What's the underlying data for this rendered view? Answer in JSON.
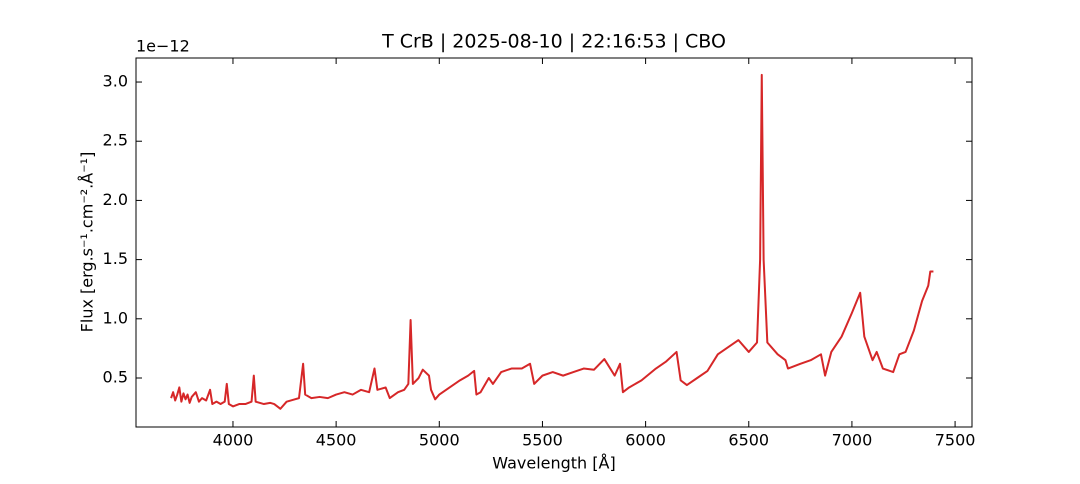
{
  "chart_data": {
    "type": "line",
    "title": "T CrB | 2025-08-10 | 22:16:53 | CBO",
    "x_label": "Wavelength [Å]",
    "y_label": "Flux [erg.s⁻¹.cm⁻².Å⁻¹]",
    "offset_label": "1e−12",
    "xlim": [
      3530,
      7582
    ],
    "ylim": [
      0.086,
      3.203
    ],
    "xticks": [
      4000,
      4500,
      5000,
      5500,
      6000,
      6500,
      7000,
      7500
    ],
    "yticks": [
      0.5,
      {
        "value": 1,
        "label": "1.0"
      },
      1.5,
      {
        "value": 2,
        "label": "2.0"
      },
      2.5,
      {
        "value": 3,
        "label": "3.0"
      }
    ],
    "series": [
      {
        "color": "#d62728",
        "x": [
          3700,
          3710,
          3720,
          3730,
          3740,
          3750,
          3760,
          3770,
          3780,
          3790,
          3800,
          3820,
          3835,
          3850,
          3870,
          3889,
          3900,
          3920,
          3940,
          3960,
          3970,
          3980,
          4000,
          4030,
          4060,
          4090,
          4101,
          4110,
          4150,
          4180,
          4200,
          4230,
          4260,
          4300,
          4320,
          4340,
          4350,
          4380,
          4420,
          4460,
          4500,
          4540,
          4580,
          4620,
          4660,
          4686,
          4700,
          4740,
          4760,
          4800,
          4830,
          4850,
          4861,
          4872,
          4900,
          4920,
          4950,
          4960,
          4980,
          5000,
          5050,
          5100,
          5140,
          5169,
          5180,
          5200,
          5240,
          5260,
          5300,
          5350,
          5400,
          5440,
          5460,
          5500,
          5550,
          5600,
          5650,
          5700,
          5750,
          5800,
          5850,
          5876,
          5890,
          5920,
          5980,
          6050,
          6100,
          6150,
          6170,
          6200,
          6250,
          6300,
          6350,
          6400,
          6450,
          6500,
          6540,
          6555,
          6563,
          6572,
          6590,
          6640,
          6678,
          6690,
          6750,
          6800,
          6850,
          6870,
          6900,
          6950,
          7000,
          7040,
          7060,
          7100,
          7120,
          7150,
          7200,
          7230,
          7260,
          7300,
          7340,
          7370,
          7380,
          7395
        ],
        "values": [
          0.33,
          0.38,
          0.31,
          0.36,
          0.42,
          0.3,
          0.37,
          0.32,
          0.36,
          0.29,
          0.34,
          0.38,
          0.3,
          0.33,
          0.31,
          0.4,
          0.28,
          0.3,
          0.28,
          0.3,
          0.45,
          0.28,
          0.26,
          0.28,
          0.28,
          0.3,
          0.52,
          0.3,
          0.28,
          0.29,
          0.28,
          0.24,
          0.3,
          0.32,
          0.33,
          0.62,
          0.36,
          0.33,
          0.34,
          0.33,
          0.36,
          0.38,
          0.36,
          0.4,
          0.38,
          0.58,
          0.4,
          0.42,
          0.33,
          0.38,
          0.4,
          0.45,
          0.99,
          0.45,
          0.5,
          0.57,
          0.52,
          0.4,
          0.32,
          0.36,
          0.42,
          0.48,
          0.52,
          0.56,
          0.36,
          0.38,
          0.5,
          0.45,
          0.55,
          0.58,
          0.58,
          0.62,
          0.45,
          0.52,
          0.55,
          0.52,
          0.55,
          0.58,
          0.57,
          0.66,
          0.52,
          0.62,
          0.38,
          0.42,
          0.48,
          0.58,
          0.64,
          0.72,
          0.48,
          0.44,
          0.5,
          0.56,
          0.7,
          0.76,
          0.82,
          0.72,
          0.8,
          1.5,
          3.06,
          1.5,
          0.8,
          0.7,
          0.65,
          0.58,
          0.62,
          0.65,
          0.7,
          0.52,
          0.72,
          0.85,
          1.05,
          1.22,
          0.85,
          0.65,
          0.72,
          0.58,
          0.55,
          0.7,
          0.72,
          0.9,
          1.15,
          1.28,
          1.4,
          1.4
        ]
      }
    ]
  }
}
